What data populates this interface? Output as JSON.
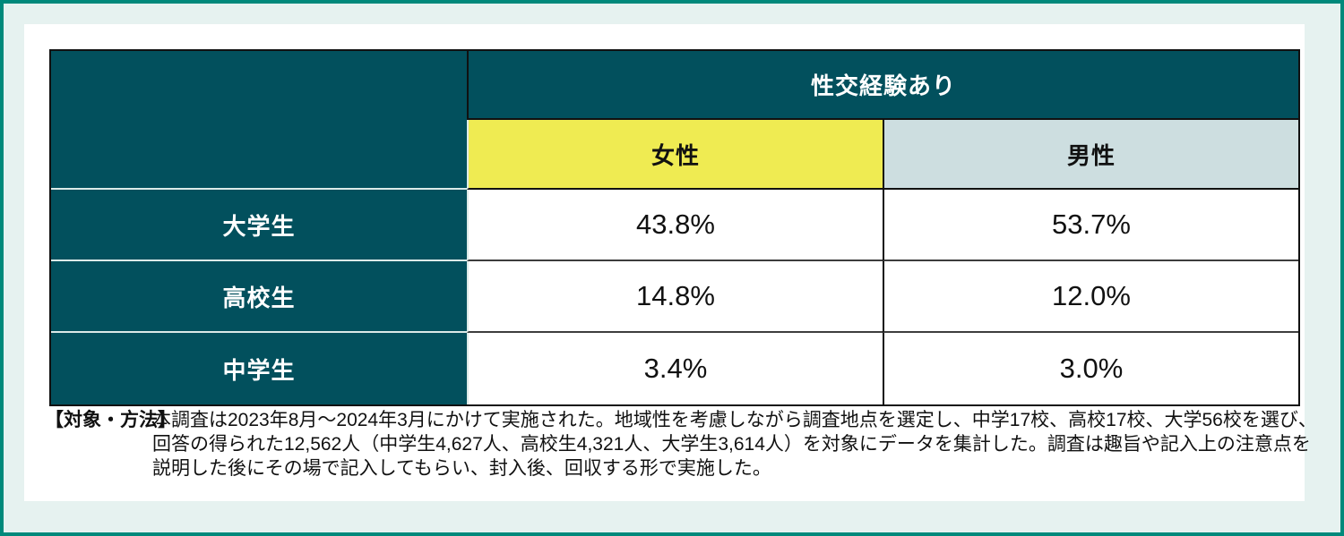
{
  "colors": {
    "frame": "#00897b",
    "page_bg": "#e6f2f0",
    "card_bg": "#ffffff",
    "teal": "#02505d",
    "female": "#efeb52",
    "male": "#cddee0",
    "border_dark": "#111111",
    "border_row": "#3d3d3d",
    "border_light": "#dceae8",
    "text_light": "#ffffff",
    "text_dark": "#111111"
  },
  "table": {
    "top_header": "性交経験あり",
    "columns": [
      {
        "label": "女性"
      },
      {
        "label": "男性"
      }
    ],
    "rows": [
      {
        "label": "大学生",
        "female": "43.8%",
        "male": "53.7%"
      },
      {
        "label": "高校生",
        "female": "14.8%",
        "male": "12.0%"
      },
      {
        "label": "中学生",
        "female": "3.4%",
        "male": "3.0%"
      }
    ]
  },
  "note": {
    "label": "【対象・方法】",
    "lines": [
      "本調査は2023年8月～2024年3月にかけて実施された。地域性を考慮しながら調査地点を選定し、中学17校、高校17校、大学56校を選び、",
      "回答の得られた12,562人（中学生4,627人、高校生4,321人、大学生3,614人）を対象にデータを集計した。調査は趣旨や記入上の注意点を",
      "説明した後にその場で記入してもらい、封入後、回収する形で実施した。"
    ]
  },
  "chart_data": {
    "type": "table",
    "title": "性交経験あり",
    "row_categories": [
      "大学生",
      "高校生",
      "中学生"
    ],
    "column_categories": [
      "女性",
      "男性"
    ],
    "series": [
      {
        "name": "女性",
        "values": [
          43.8,
          14.8,
          3.4
        ]
      },
      {
        "name": "男性",
        "values": [
          53.7,
          12.0,
          3.0
        ]
      }
    ],
    "unit": "%",
    "note": "【対象・方法】本調査は2023年8月～2024年3月にかけて実施された。地域性を考慮しながら調査地点を選定し、中学17校、高校17校、大学56校を選び、回答の得られた12,562人（中学生4,627人、高校生4,321人、大学生3,614人）を対象にデータを集計した。調査は趣旨や記入上の注意点を説明した後にその場で記入してもらい、封入後、回収する形で実施した。"
  }
}
